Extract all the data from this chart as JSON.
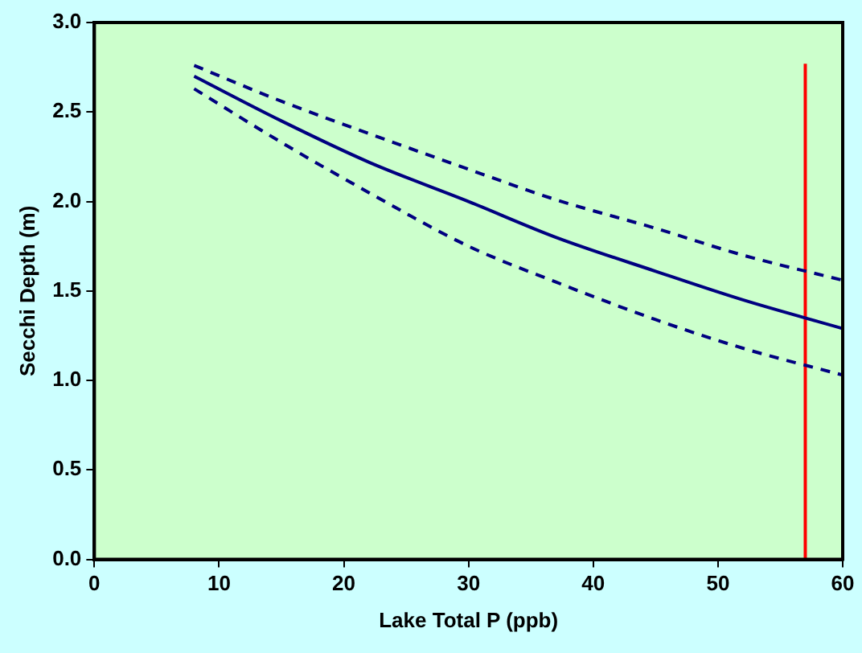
{
  "chart_data": {
    "type": "line",
    "xlabel": "Lake Total P (ppb)",
    "ylabel": "Secchi Depth (m)",
    "xlim": [
      0,
      60
    ],
    "xticks": [
      0,
      10,
      20,
      30,
      40,
      50,
      60
    ],
    "ylim": [
      0,
      3
    ],
    "yticks": [
      {
        "value": 0,
        "label": "0.0"
      },
      {
        "value": 0.5,
        "label": "0.5"
      },
      {
        "value": 1,
        "label": "1.0"
      },
      {
        "value": 1.5,
        "label": "1.5"
      },
      {
        "value": 2,
        "label": "2.0"
      },
      {
        "value": 2.5,
        "label": "2.5"
      },
      {
        "value": 3,
        "label": "3.0"
      }
    ],
    "grid": false,
    "legend": false,
    "marker": "none",
    "series": [
      {
        "color": "#000080",
        "line_style": "solid",
        "x": [
          8,
          15,
          22,
          30,
          37,
          45,
          52,
          60
        ],
        "values": [
          2.7,
          2.45,
          2.22,
          2.0,
          1.8,
          1.61,
          1.45,
          1.29
        ]
      },
      {
        "color": "#000080",
        "line_style": "dashed",
        "x": [
          8,
          15,
          22,
          30,
          37,
          45,
          52,
          60
        ],
        "values": [
          2.76,
          2.56,
          2.38,
          2.18,
          2.01,
          1.85,
          1.7,
          1.56
        ]
      },
      {
        "color": "#000080",
        "line_style": "dashed",
        "x": [
          8,
          15,
          22,
          30,
          37,
          45,
          52,
          60
        ],
        "values": [
          2.63,
          2.33,
          2.05,
          1.75,
          1.55,
          1.34,
          1.18,
          1.03
        ]
      },
      {
        "color": "#ff0000",
        "line_style": "solid",
        "x": [
          57,
          57
        ],
        "values": [
          0,
          2.77
        ]
      }
    ]
  }
}
